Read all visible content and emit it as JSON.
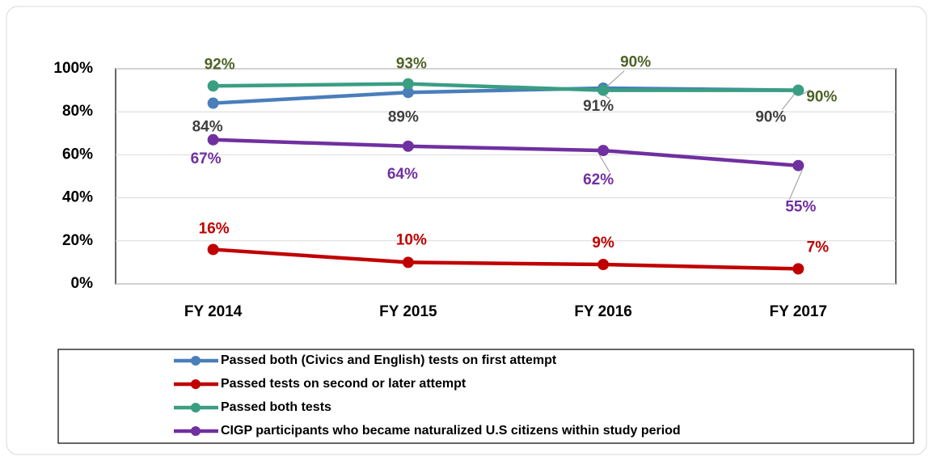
{
  "chart_data": {
    "type": "line",
    "categories": [
      "FY 2014",
      "FY 2015",
      "FY 2016",
      "FY 2017"
    ],
    "series": [
      {
        "name": "Passed both (Civics and English) tests on first attempt",
        "color": "#4a7ebb",
        "label_color": "#404040",
        "values": [
          84,
          89,
          91,
          90
        ],
        "value_labels": [
          "84%",
          "89%",
          "91%",
          "90%"
        ]
      },
      {
        "name": "Passed tests on second or later attempt",
        "color": "#c00000",
        "label_color": "#c00000",
        "values": [
          16,
          10,
          9,
          7
        ],
        "value_labels": [
          "16%",
          "10%",
          "9%",
          "7%"
        ]
      },
      {
        "name": "Passed both tests",
        "color": "#3a9e82",
        "label_color": "#4f6228",
        "values": [
          92,
          93,
          90,
          90
        ],
        "value_labels": [
          "92%",
          "93%",
          "90%",
          "90%"
        ]
      },
      {
        "name": "CIGP participants who became naturalized U.S citizens within study period",
        "color": "#7030a0",
        "label_color": "#7030a0",
        "values": [
          67,
          64,
          62,
          55
        ],
        "value_labels": [
          "67%",
          "64%",
          "62%",
          "55%"
        ]
      }
    ],
    "ylim": [
      0,
      100
    ],
    "yticks": [
      {
        "value": 0,
        "label": "0%"
      },
      {
        "value": 20,
        "label": "20%"
      },
      {
        "value": 40,
        "label": "40%"
      },
      {
        "value": 60,
        "label": "60%"
      },
      {
        "value": 80,
        "label": "80%"
      },
      {
        "value": 100,
        "label": "100%"
      }
    ],
    "grid": true,
    "legend": "bottom"
  }
}
